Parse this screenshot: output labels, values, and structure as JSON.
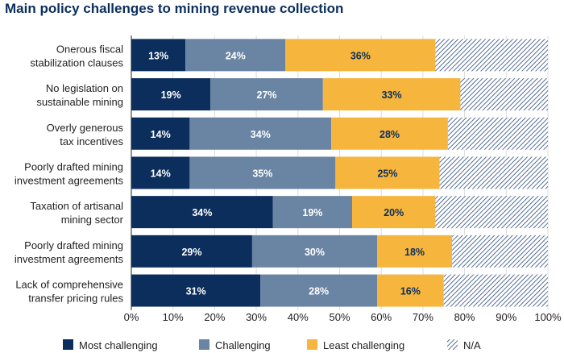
{
  "title": "Main policy challenges to mining revenue collection",
  "chart_data": {
    "type": "bar",
    "orientation": "horizontal",
    "stacked": true,
    "title": "Main policy challenges to mining revenue collection",
    "categories": [
      [
        "Onerous fiscal",
        "stabilization clauses"
      ],
      [
        "No legislation on",
        "sustainable mining"
      ],
      [
        "Overly generous",
        "tax incentives"
      ],
      [
        "Poorly drafted mining",
        "investment agreements"
      ],
      [
        "Taxation of artisanal",
        "mining sector"
      ],
      [
        "Poorly drafted mining",
        "investment agreements"
      ],
      [
        "Lack of comprehensive",
        "transfer pricing rules"
      ]
    ],
    "series": [
      {
        "name": "Most challenging",
        "color": "#0b2e5c",
        "label_color": "#ffffff",
        "values": [
          13,
          19,
          14,
          14,
          34,
          29,
          31
        ],
        "labels": [
          "13%",
          "19%",
          "14%",
          "14%",
          "34%",
          "29%",
          "31%"
        ]
      },
      {
        "name": "Challenging",
        "color": "#6a84a3",
        "label_color": "#ffffff",
        "values": [
          24,
          27,
          34,
          35,
          19,
          30,
          28
        ],
        "labels": [
          "24%",
          "27%",
          "34%",
          "35%",
          "19%",
          "30%",
          "28%"
        ]
      },
      {
        "name": "Least challenging",
        "color": "#f6b53c",
        "label_color": "#0b2e5c",
        "values": [
          36,
          33,
          28,
          25,
          20,
          18,
          16
        ],
        "labels": [
          "36%",
          "33%",
          "28%",
          "25%",
          "20%",
          "18%",
          "16%"
        ]
      },
      {
        "name": "N/A",
        "color": "#2a4a7a",
        "pattern": "hatch",
        "values": [
          27,
          21,
          24,
          26,
          27,
          23,
          25
        ]
      }
    ],
    "xlim": [
      0,
      100
    ],
    "xticks": [
      "0%",
      "10%",
      "20%",
      "30%",
      "40%",
      "50%",
      "60%",
      "70%",
      "80%",
      "90%",
      "100%"
    ],
    "grid": "vertical",
    "legend": "bottom"
  }
}
